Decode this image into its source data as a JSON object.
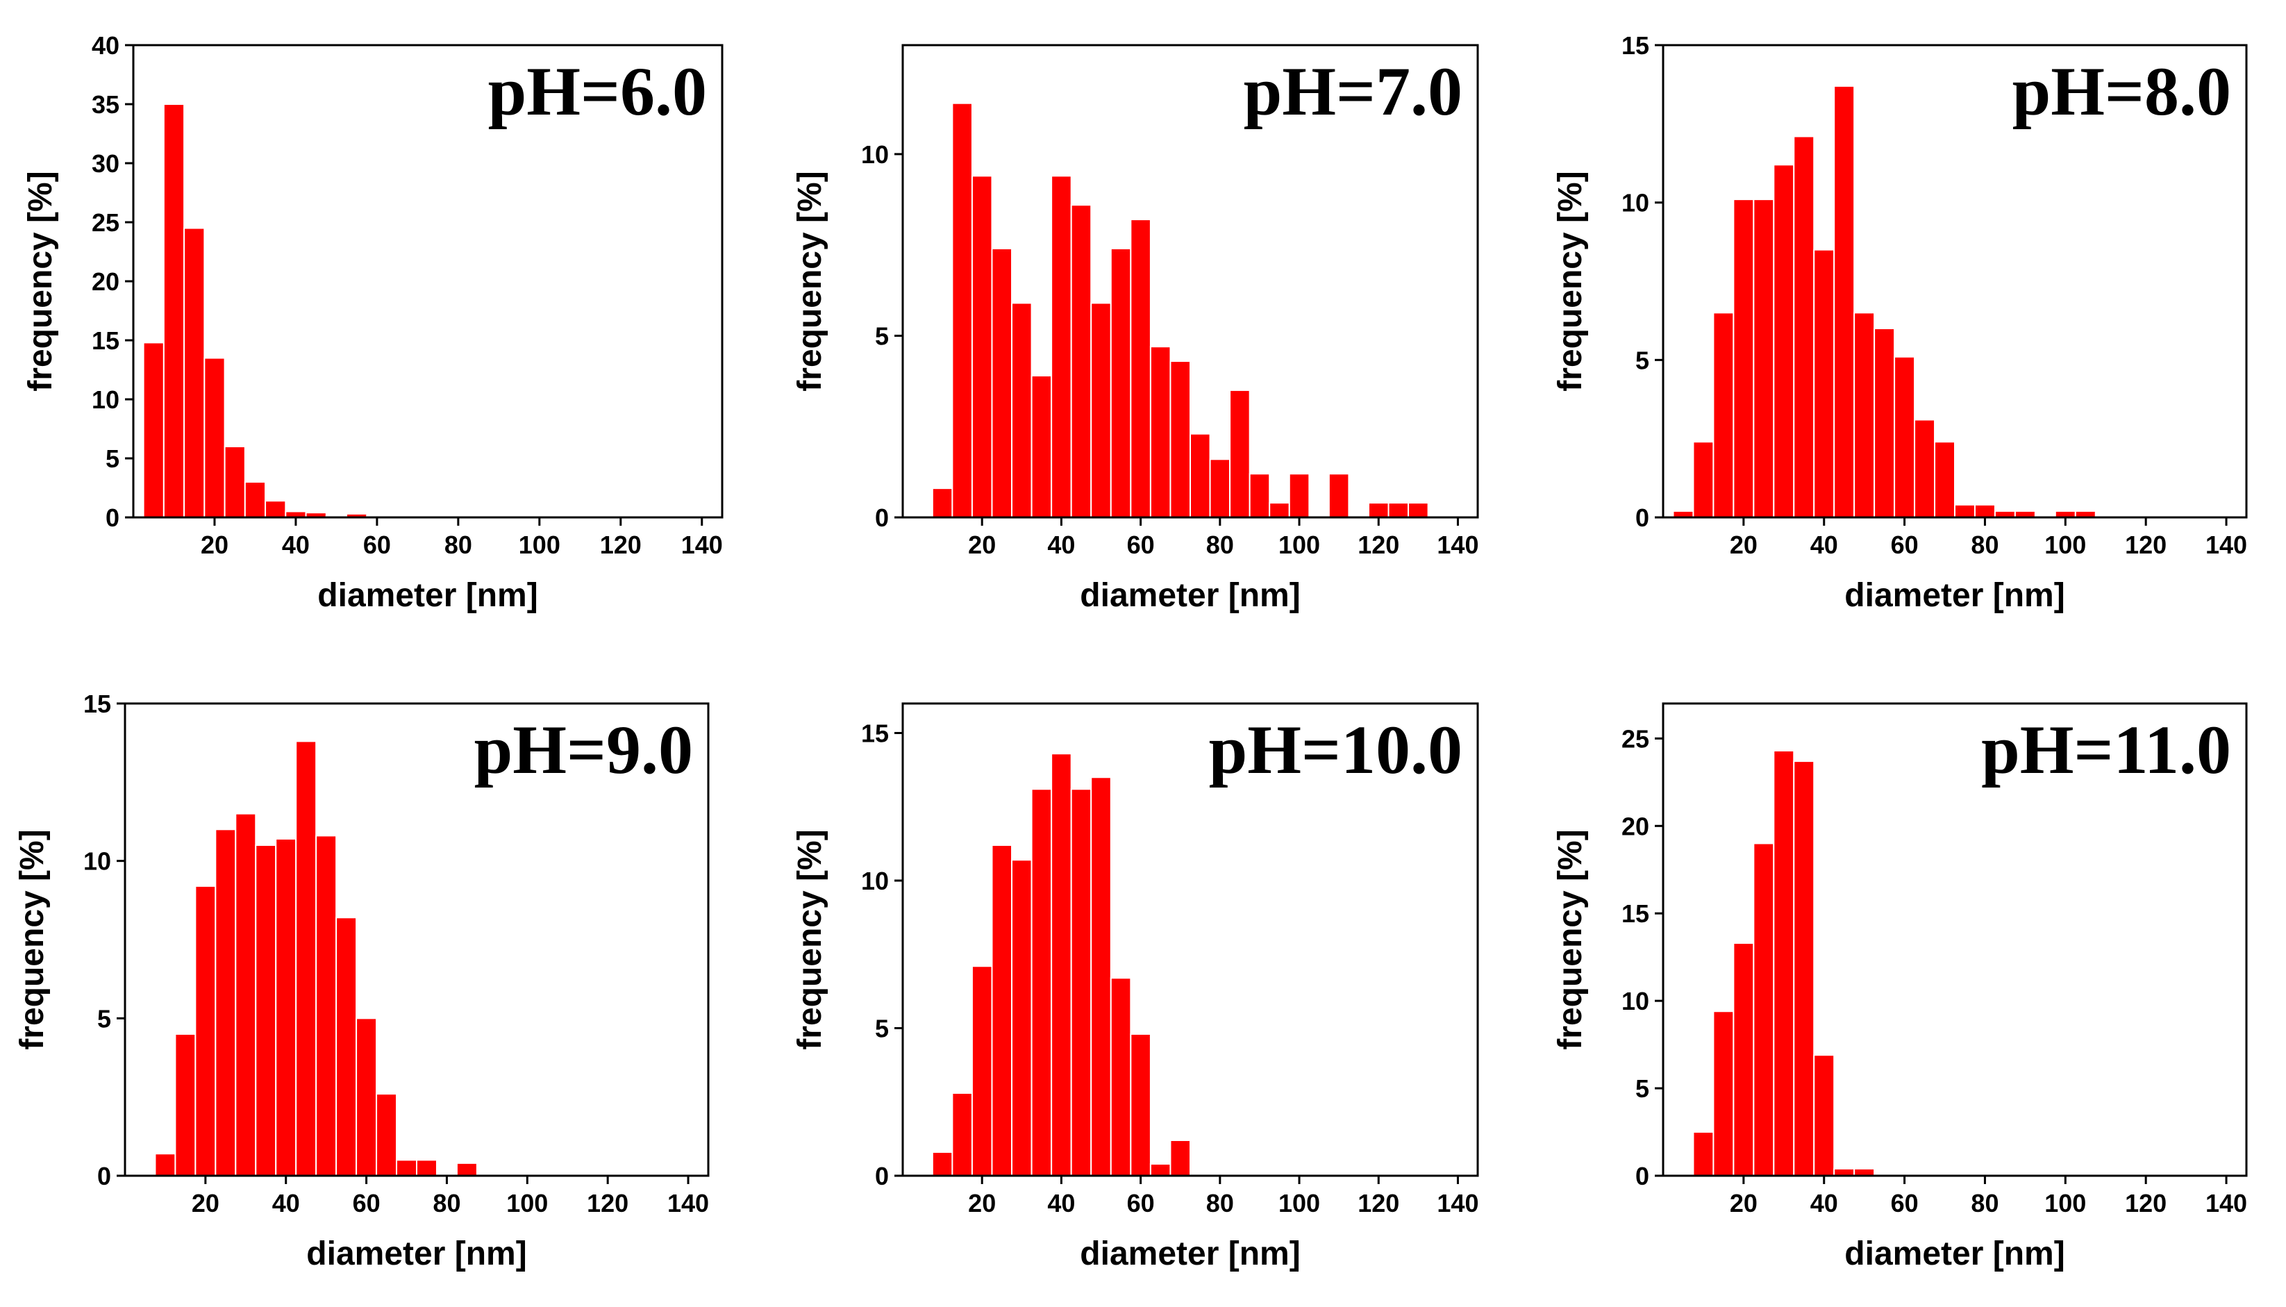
{
  "figure": {
    "bar_color": "#ff0000",
    "frame_color": "#000000"
  },
  "chart_data": [
    {
      "type": "bar",
      "title": "pH=6.0",
      "xlabel": "diameter [nm]",
      "ylabel": "frequency [%]",
      "xlim": [
        0,
        145
      ],
      "ylim": [
        0,
        40
      ],
      "xticks": [
        20,
        40,
        60,
        80,
        100,
        120,
        140
      ],
      "xtick_labels": [
        "20",
        "40",
        "60",
        "80",
        "100",
        "120",
        "140"
      ],
      "yticks": [
        0,
        5,
        10,
        15,
        20,
        25,
        30,
        35,
        40
      ],
      "ytick_labels": [
        "0",
        "5",
        "10",
        "15",
        "20",
        "25",
        "30",
        "35",
        "40"
      ],
      "bin_width": 5,
      "x": [
        5,
        10,
        15,
        20,
        25,
        30,
        35,
        40,
        45,
        50,
        55,
        60,
        65,
        70,
        75,
        80,
        85,
        90,
        95,
        100
      ],
      "values": [
        14.8,
        35.0,
        24.5,
        13.5,
        6.0,
        3.0,
        1.4,
        0.5,
        0.4,
        0.1,
        0.3,
        0.1,
        0.05,
        0.1,
        0.1,
        0.05,
        0.05,
        0.05,
        0.05,
        0.1
      ]
    },
    {
      "type": "bar",
      "title": "pH=7.0",
      "xlabel": "diameter [nm]",
      "ylabel": "frequency [%]",
      "xlim": [
        0,
        145
      ],
      "ylim": [
        0,
        13
      ],
      "xticks": [
        20,
        40,
        60,
        80,
        100,
        120,
        140
      ],
      "xtick_labels": [
        "20",
        "40",
        "60",
        "80",
        "100",
        "120",
        "140"
      ],
      "yticks": [
        0,
        5,
        10
      ],
      "ytick_labels": [
        "0",
        "5",
        "10"
      ],
      "bin_width": 5,
      "x": [
        10,
        15,
        20,
        25,
        30,
        35,
        40,
        45,
        50,
        55,
        60,
        65,
        70,
        75,
        80,
        85,
        90,
        95,
        100,
        105,
        110,
        115,
        120,
        125,
        130
      ],
      "values": [
        0.8,
        11.4,
        9.4,
        7.4,
        5.9,
        3.9,
        9.4,
        8.6,
        5.9,
        7.4,
        8.2,
        4.7,
        4.3,
        2.3,
        1.6,
        3.5,
        1.2,
        0.4,
        1.2,
        0,
        1.2,
        0,
        0.4,
        0.4,
        0.4
      ]
    },
    {
      "type": "bar",
      "title": "pH=8.0",
      "xlabel": "diameter [nm]",
      "ylabel": "frequency [%]",
      "xlim": [
        0,
        145
      ],
      "ylim": [
        0,
        15
      ],
      "xticks": [
        20,
        40,
        60,
        80,
        100,
        120,
        140
      ],
      "xtick_labels": [
        "20",
        "40",
        "60",
        "80",
        "100",
        "120",
        "140"
      ],
      "yticks": [
        0,
        5,
        10,
        15
      ],
      "ytick_labels": [
        "0",
        "5",
        "10",
        "15"
      ],
      "bin_width": 5,
      "x": [
        5,
        10,
        15,
        20,
        25,
        30,
        35,
        40,
        45,
        50,
        55,
        60,
        65,
        70,
        75,
        80,
        85,
        90,
        95,
        100,
        105
      ],
      "values": [
        0.2,
        2.4,
        6.5,
        10.1,
        10.1,
        11.2,
        12.1,
        8.5,
        13.7,
        6.5,
        6.0,
        5.1,
        3.1,
        2.4,
        0.4,
        0.4,
        0.2,
        0.2,
        0,
        0.2,
        0.2
      ]
    },
    {
      "type": "bar",
      "title": "pH=9.0",
      "xlabel": "diameter [nm]",
      "ylabel": "frequency [%]",
      "xlim": [
        0,
        145
      ],
      "ylim": [
        0,
        15
      ],
      "xticks": [
        20,
        40,
        60,
        80,
        100,
        120,
        140
      ],
      "xtick_labels": [
        "20",
        "40",
        "60",
        "80",
        "100",
        "120",
        "140"
      ],
      "yticks": [
        0,
        5,
        10,
        15
      ],
      "ytick_labels": [
        "0",
        "5",
        "10",
        "15"
      ],
      "bin_width": 5,
      "x": [
        10,
        15,
        20,
        25,
        30,
        35,
        40,
        45,
        50,
        55,
        60,
        65,
        70,
        75,
        80,
        85
      ],
      "values": [
        0.7,
        4.5,
        9.2,
        11.0,
        11.5,
        10.5,
        10.7,
        13.8,
        10.8,
        8.2,
        5.0,
        2.6,
        0.5,
        0.5,
        0,
        0.4
      ]
    },
    {
      "type": "bar",
      "title": "pH=10.0",
      "xlabel": "diameter [nm]",
      "ylabel": "frequency [%]",
      "xlim": [
        0,
        145
      ],
      "ylim": [
        0,
        16
      ],
      "xticks": [
        20,
        40,
        60,
        80,
        100,
        120,
        140
      ],
      "xtick_labels": [
        "20",
        "40",
        "60",
        "80",
        "100",
        "120",
        "140"
      ],
      "yticks": [
        0,
        5,
        10,
        15
      ],
      "ytick_labels": [
        "0",
        "5",
        "10",
        "15"
      ],
      "bin_width": 5,
      "x": [
        10,
        15,
        20,
        25,
        30,
        35,
        40,
        45,
        50,
        55,
        60,
        65,
        70
      ],
      "values": [
        0.8,
        2.8,
        7.1,
        11.2,
        10.7,
        13.1,
        14.3,
        13.1,
        13.5,
        6.7,
        4.8,
        0.4,
        1.2
      ]
    },
    {
      "type": "bar",
      "title": "pH=11.0",
      "xlabel": "diameter [nm]",
      "ylabel": "frequency [%]",
      "xlim": [
        0,
        145
      ],
      "ylim": [
        0,
        27
      ],
      "xticks": [
        20,
        40,
        60,
        80,
        100,
        120,
        140
      ],
      "xtick_labels": [
        "20",
        "40",
        "60",
        "80",
        "100",
        "120",
        "140"
      ],
      "yticks": [
        0,
        5,
        10,
        15,
        20,
        25
      ],
      "ytick_labels": [
        "0",
        "5",
        "10",
        "15",
        "20",
        "25"
      ],
      "bin_width": 5,
      "x": [
        10,
        15,
        20,
        25,
        30,
        35,
        40,
        45,
        50
      ],
      "values": [
        2.5,
        9.4,
        13.3,
        19.0,
        24.3,
        23.7,
        6.9,
        0.4,
        0.4
      ]
    }
  ]
}
